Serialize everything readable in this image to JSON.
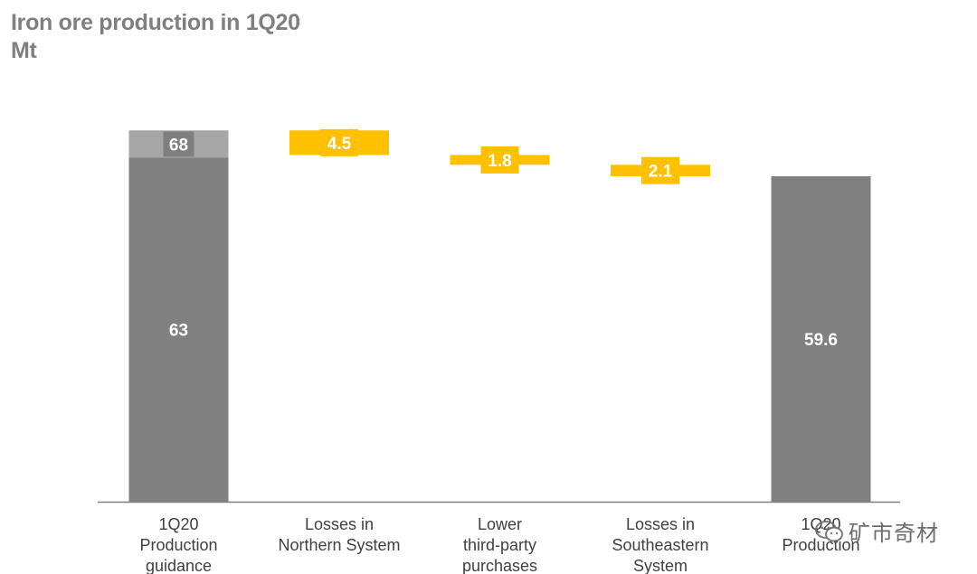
{
  "title": "Iron ore production in 1Q20",
  "subtitle": "Mt",
  "watermark": "矿市奇材",
  "colors": {
    "base": "#808080",
    "base_top": "#a6a6a6",
    "decrease": "#ffc000",
    "label_dark": "#7f7f7f",
    "axis": "#7f7f7f",
    "tick_text": "#404040"
  },
  "chart_data": {
    "type": "waterfall",
    "title": "Iron ore production in 1Q20",
    "subtitle": "Mt",
    "categories": [
      "1Q20 Production guidance",
      "Losses in Northern System",
      "Lower third-party purchases",
      "Losses in Southeastern System",
      "1Q20 Production"
    ],
    "category_lines": [
      [
        "1Q20",
        "Production",
        "guidance"
      ],
      [
        "Losses in",
        "Northern System"
      ],
      [
        "Lower",
        "third-party",
        "purchases"
      ],
      [
        "Losses in",
        "Southeastern",
        "System"
      ],
      [
        "1Q20",
        "Production"
      ]
    ],
    "bars": [
      {
        "kind": "total",
        "segments": [
          {
            "value": 63,
            "label": "63",
            "role": "base"
          },
          {
            "value": 5,
            "label": "68",
            "role": "base_top"
          }
        ]
      },
      {
        "kind": "decrease",
        "value": 4.5,
        "label": "4.5"
      },
      {
        "kind": "decrease",
        "value": 1.8,
        "label": "1.8"
      },
      {
        "kind": "decrease",
        "value": 2.1,
        "label": "2.1"
      },
      {
        "kind": "total",
        "segments": [
          {
            "value": 59.6,
            "label": "59.6",
            "role": "base"
          }
        ]
      }
    ],
    "ylim": [
      0,
      68
    ],
    "legend": "none",
    "grid": false
  }
}
